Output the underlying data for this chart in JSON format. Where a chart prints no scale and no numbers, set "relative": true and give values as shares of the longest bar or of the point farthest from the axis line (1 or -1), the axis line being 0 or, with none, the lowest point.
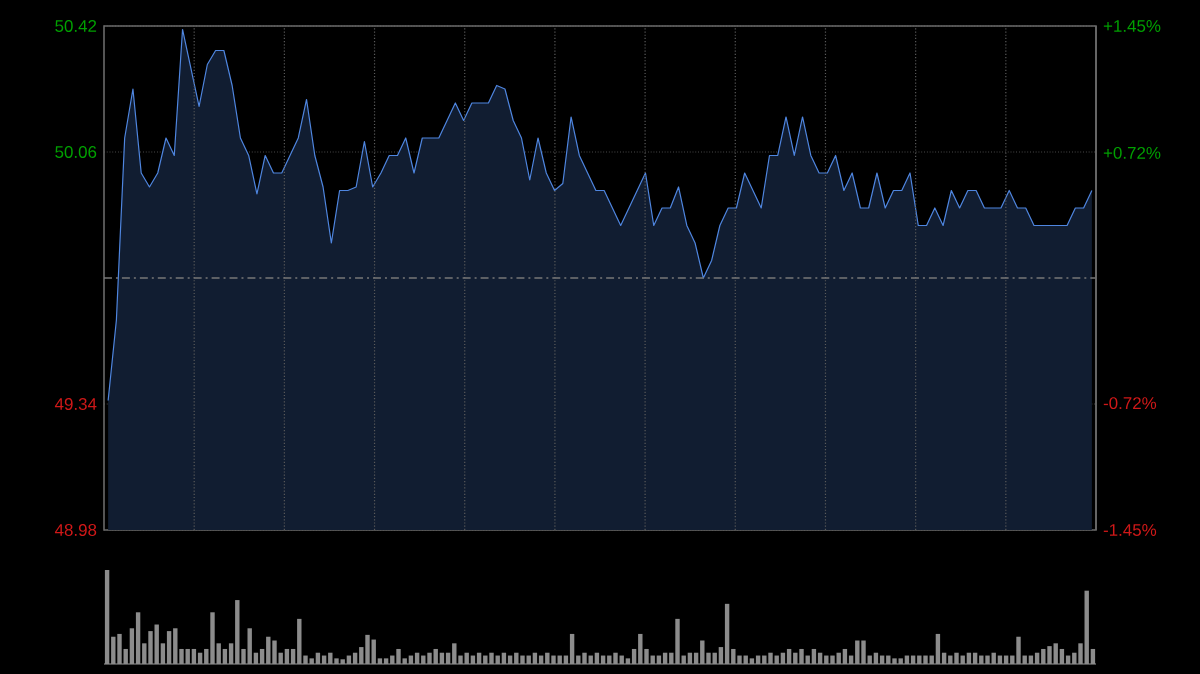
{
  "chart_data": [
    {
      "type": "area",
      "color": "#4f86e0",
      "ylim": [
        48.98,
        50.42
      ],
      "y2lim": [
        -1.45,
        1.45
      ],
      "grid": true,
      "tick_labels": "y",
      "yticks": [
        48.98,
        49.34,
        50.06,
        50.42
      ],
      "y2ticks": [
        {
          "value": -1.45,
          "label": "-1.45%"
        },
        {
          "value": -0.72,
          "label": "-0.72%"
        },
        {
          "value": 0.72,
          "label": "+0.72%"
        },
        {
          "value": 1.45,
          "label": "+1.45%"
        }
      ],
      "ref_lines": [
        {
          "axis": "y",
          "value": 49.7,
          "line_style": "dashed",
          "color": "#777777"
        }
      ],
      "categories": [
        null,
        null,
        null,
        null,
        null,
        null,
        null,
        null,
        null,
        null,
        null,
        null,
        null,
        null,
        null,
        null,
        null,
        null,
        null,
        null,
        null,
        null,
        null,
        null,
        null,
        null,
        null,
        null,
        null,
        null,
        null,
        null,
        null,
        null,
        null,
        null,
        null,
        null,
        null,
        null,
        null,
        null,
        null,
        null,
        null,
        null,
        null,
        null,
        null,
        null,
        null,
        null,
        null,
        null,
        null,
        null,
        null,
        null,
        null,
        null,
        null,
        null,
        null,
        null,
        null,
        null,
        null,
        null,
        null,
        null,
        null,
        null,
        null,
        null,
        null,
        null,
        null,
        null,
        null,
        null,
        null,
        null,
        null,
        null,
        null,
        null,
        null,
        null,
        null,
        null,
        null,
        null,
        null,
        null,
        null,
        null,
        null,
        null,
        null,
        null,
        null,
        null,
        null,
        null,
        null,
        null,
        null,
        null,
        null,
        null,
        null,
        null,
        null,
        null,
        null,
        null,
        null,
        null,
        null,
        null
      ],
      "values": [
        49.35,
        49.58,
        50.1,
        50.24,
        50.0,
        49.96,
        50.0,
        50.1,
        50.05,
        50.41,
        50.3,
        50.19,
        50.31,
        50.35,
        50.35,
        50.25,
        50.1,
        50.05,
        49.94,
        50.05,
        50.0,
        50.0,
        50.05,
        50.1,
        50.21,
        50.05,
        49.96,
        49.8,
        49.95,
        49.95,
        49.96,
        50.09,
        49.96,
        50.0,
        50.05,
        50.05,
        50.1,
        50.0,
        50.1,
        50.1,
        50.1,
        50.15,
        50.2,
        50.15,
        50.2,
        50.2,
        50.2,
        50.25,
        50.24,
        50.15,
        50.1,
        49.98,
        50.1,
        50.0,
        49.95,
        49.97,
        50.16,
        50.05,
        50.0,
        49.95,
        49.95,
        49.9,
        49.85,
        49.9,
        49.95,
        50.0,
        49.85,
        49.9,
        49.9,
        49.96,
        49.85,
        49.8,
        49.7,
        49.75,
        49.85,
        49.9,
        49.9,
        50.0,
        49.95,
        49.9,
        50.05,
        50.05,
        50.16,
        50.05,
        50.16,
        50.05,
        50.0,
        50.0,
        50.05,
        49.95,
        50.0,
        49.9,
        49.9,
        50.0,
        49.9,
        49.95,
        49.95,
        50.0,
        49.85,
        49.85,
        49.9,
        49.85,
        49.95,
        49.9,
        49.95,
        49.95,
        49.9,
        49.9,
        49.9,
        49.95,
        49.9,
        49.9,
        49.85,
        49.85,
        49.85,
        49.85,
        49.85,
        49.9,
        49.9,
        49.95
      ]
    },
    {
      "type": "bar",
      "relative": true,
      "color": "#8c8c8c",
      "categories": [
        null,
        null,
        null,
        null,
        null,
        null,
        null,
        null,
        null,
        null,
        null,
        null,
        null,
        null,
        null,
        null,
        null,
        null,
        null,
        null,
        null,
        null,
        null,
        null,
        null,
        null,
        null,
        null,
        null,
        null,
        null,
        null,
        null,
        null,
        null,
        null,
        null,
        null,
        null,
        null,
        null,
        null,
        null,
        null,
        null,
        null,
        null,
        null,
        null,
        null,
        null,
        null,
        null,
        null,
        null,
        null,
        null,
        null,
        null,
        null,
        null,
        null,
        null,
        null,
        null,
        null,
        null,
        null,
        null,
        null,
        null,
        null,
        null,
        null,
        null,
        null,
        null,
        null,
        null,
        null,
        null,
        null,
        null,
        null,
        null,
        null,
        null,
        null,
        null,
        null,
        null,
        null,
        null,
        null,
        null,
        null,
        null,
        null,
        null,
        null,
        null,
        null,
        null,
        null,
        null,
        null,
        null,
        null,
        null,
        null,
        null,
        null,
        null,
        null,
        null,
        null,
        null,
        null,
        null,
        null,
        null,
        null,
        null,
        null,
        null,
        null,
        null,
        null,
        null,
        null,
        null,
        null,
        null,
        null,
        null,
        null,
        null,
        null,
        null,
        null,
        null,
        null,
        null,
        null,
        null,
        null,
        null,
        null,
        null,
        null,
        null,
        null,
        null,
        null,
        null,
        null,
        null,
        null,
        null,
        null
      ],
      "values": [
        1.0,
        0.29,
        0.32,
        0.16,
        0.38,
        0.55,
        0.22,
        0.35,
        0.42,
        0.22,
        0.35,
        0.38,
        0.16,
        0.16,
        0.16,
        0.12,
        0.16,
        0.55,
        0.22,
        0.16,
        0.22,
        0.68,
        0.16,
        0.38,
        0.12,
        0.16,
        0.29,
        0.25,
        0.12,
        0.16,
        0.16,
        0.48,
        0.09,
        0.06,
        0.12,
        0.09,
        0.12,
        0.06,
        0.05,
        0.09,
        0.12,
        0.18,
        0.31,
        0.26,
        0.06,
        0.06,
        0.09,
        0.16,
        0.06,
        0.09,
        0.12,
        0.09,
        0.12,
        0.16,
        0.12,
        0.12,
        0.22,
        0.09,
        0.12,
        0.09,
        0.12,
        0.09,
        0.12,
        0.09,
        0.12,
        0.09,
        0.12,
        0.09,
        0.09,
        0.12,
        0.09,
        0.12,
        0.09,
        0.09,
        0.09,
        0.32,
        0.09,
        0.12,
        0.09,
        0.12,
        0.09,
        0.09,
        0.12,
        0.09,
        0.06,
        0.16,
        0.32,
        0.16,
        0.09,
        0.09,
        0.12,
        0.12,
        0.48,
        0.09,
        0.12,
        0.12,
        0.25,
        0.12,
        0.12,
        0.18,
        0.64,
        0.16,
        0.09,
        0.09,
        0.06,
        0.09,
        0.09,
        0.12,
        0.09,
        0.12,
        0.16,
        0.12,
        0.16,
        0.09,
        0.16,
        0.12,
        0.09,
        0.09,
        0.12,
        0.16,
        0.09,
        0.25,
        0.25,
        0.09,
        0.12,
        0.09,
        0.09,
        0.06,
        0.06,
        0.09,
        0.09,
        0.09,
        0.09,
        0.09,
        0.32,
        0.12,
        0.09,
        0.12,
        0.09,
        0.12,
        0.12,
        0.09,
        0.09,
        0.12,
        0.09,
        0.09,
        0.09,
        0.29,
        0.09,
        0.09,
        0.12,
        0.16,
        0.19,
        0.22,
        0.16,
        0.09,
        0.12,
        0.22,
        0.78,
        0.16
      ]
    }
  ]
}
